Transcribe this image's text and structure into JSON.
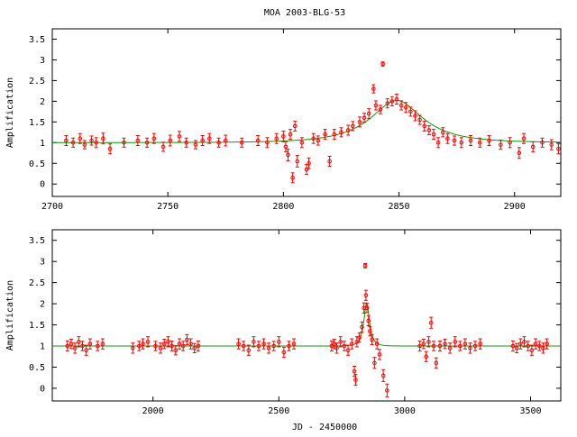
{
  "title": "MOA 2003-BLG-53",
  "chart_data": [
    {
      "type": "scatter",
      "name": "zoom-panel",
      "title": "MOA 2003-BLG-53",
      "xlabel": "",
      "ylabel": "Amplification",
      "xlim": [
        2700,
        2920
      ],
      "ylim": [
        -0.3,
        3.75
      ],
      "xticks": [
        2700,
        2750,
        2800,
        2850,
        2900
      ],
      "yticks": [
        0,
        0.5,
        1,
        1.5,
        2,
        2.5,
        3,
        3.5
      ],
      "ytick_labels": [
        "0",
        "0.5",
        "1",
        "1.5",
        "2",
        "2.5",
        "3",
        "3.5"
      ],
      "colors": {
        "points": "#ff0000",
        "model": "#00a000"
      },
      "model": {
        "t0": 2849,
        "umin": 0.55,
        "tE": 22
      },
      "points": [
        [
          2706,
          1.05,
          0.12
        ],
        [
          2709,
          1.0,
          0.11
        ],
        [
          2712,
          1.1,
          0.12
        ],
        [
          2714,
          0.95,
          0.1
        ],
        [
          2717,
          1.05,
          0.11
        ],
        [
          2719,
          1.0,
          0.12
        ],
        [
          2722,
          1.1,
          0.13
        ],
        [
          2725,
          0.85,
          0.12
        ],
        [
          2731,
          1.0,
          0.11
        ],
        [
          2737,
          1.05,
          0.12
        ],
        [
          2741,
          1.0,
          0.11
        ],
        [
          2744,
          1.1,
          0.12
        ],
        [
          2748,
          0.9,
          0.11
        ],
        [
          2751,
          1.05,
          0.13
        ],
        [
          2755,
          1.15,
          0.12
        ],
        [
          2758,
          1.0,
          0.11
        ],
        [
          2762,
          0.95,
          0.1
        ],
        [
          2765,
          1.05,
          0.12
        ],
        [
          2768,
          1.1,
          0.12
        ],
        [
          2772,
          1.0,
          0.11
        ],
        [
          2775,
          1.05,
          0.13
        ],
        [
          2782,
          1.0,
          0.11
        ],
        [
          2789,
          1.05,
          0.12
        ],
        [
          2793,
          1.0,
          0.12
        ],
        [
          2797,
          1.1,
          0.12
        ],
        [
          2800,
          1.15,
          0.13
        ],
        [
          2801,
          0.9,
          0.12
        ],
        [
          2802,
          0.7,
          0.14
        ],
        [
          2803,
          1.2,
          0.12
        ],
        [
          2804,
          0.15,
          0.12
        ],
        [
          2805,
          1.4,
          0.12
        ],
        [
          2806,
          0.55,
          0.14
        ],
        [
          2808,
          1.0,
          0.12
        ],
        [
          2810,
          0.35,
          0.12
        ],
        [
          2811,
          0.5,
          0.13
        ],
        [
          2813,
          1.1,
          0.12
        ],
        [
          2815,
          1.05,
          0.11
        ],
        [
          2818,
          1.2,
          0.12
        ],
        [
          2820,
          0.55,
          0.12
        ],
        [
          2822,
          1.2,
          0.12
        ],
        [
          2825,
          1.25,
          0.11
        ],
        [
          2828,
          1.3,
          0.12
        ],
        [
          2830,
          1.4,
          0.11
        ],
        [
          2833,
          1.5,
          0.12
        ],
        [
          2835,
          1.6,
          0.11
        ],
        [
          2837,
          1.7,
          0.12
        ],
        [
          2839,
          2.3,
          0.1
        ],
        [
          2840,
          1.9,
          0.11
        ],
        [
          2842,
          1.8,
          0.1
        ],
        [
          2843,
          2.9,
          0.05
        ],
        [
          2845,
          1.95,
          0.11
        ],
        [
          2847,
          2.0,
          0.11
        ],
        [
          2849,
          2.05,
          0.12
        ],
        [
          2851,
          1.9,
          0.11
        ],
        [
          2853,
          1.85,
          0.12
        ],
        [
          2855,
          1.75,
          0.11
        ],
        [
          2857,
          1.65,
          0.12
        ],
        [
          2859,
          1.55,
          0.11
        ],
        [
          2861,
          1.4,
          0.12
        ],
        [
          2863,
          1.3,
          0.11
        ],
        [
          2865,
          1.2,
          0.12
        ],
        [
          2867,
          1.0,
          0.12
        ],
        [
          2869,
          1.25,
          0.11
        ],
        [
          2871,
          1.1,
          0.12
        ],
        [
          2874,
          1.05,
          0.11
        ],
        [
          2877,
          1.0,
          0.12
        ],
        [
          2881,
          1.05,
          0.12
        ],
        [
          2885,
          1.0,
          0.11
        ],
        [
          2889,
          1.05,
          0.12
        ],
        [
          2894,
          0.95,
          0.11
        ],
        [
          2898,
          1.0,
          0.12
        ],
        [
          2902,
          0.75,
          0.13
        ],
        [
          2904,
          1.1,
          0.12
        ],
        [
          2908,
          0.9,
          0.12
        ],
        [
          2912,
          1.0,
          0.11
        ],
        [
          2916,
          0.95,
          0.12
        ],
        [
          2919,
          0.85,
          0.12
        ]
      ]
    },
    {
      "type": "scatter",
      "name": "full-panel",
      "title": "",
      "xlabel": "JD - 2450000",
      "ylabel": "Amplification",
      "xlim": [
        1600,
        3620
      ],
      "ylim": [
        -0.3,
        3.75
      ],
      "xticks": [
        2000,
        2500,
        3000,
        3500
      ],
      "yticks": [
        0,
        0.5,
        1,
        1.5,
        2,
        2.5,
        3,
        3.5
      ],
      "ytick_labels": [
        "0",
        "0.5",
        "1",
        "1.5",
        "2",
        "2.5",
        "3",
        "3.5"
      ],
      "colors": {
        "points": "#ff0000",
        "model": "#00a000"
      },
      "model": {
        "t0": 2849,
        "umin": 0.55,
        "tE": 22
      },
      "points": [
        [
          1660,
          1.0,
          0.12
        ],
        [
          1675,
          1.05,
          0.11
        ],
        [
          1690,
          0.95,
          0.12
        ],
        [
          1705,
          1.1,
          0.12
        ],
        [
          1720,
          1.0,
          0.11
        ],
        [
          1735,
          0.9,
          0.12
        ],
        [
          1750,
          1.05,
          0.12
        ],
        [
          1780,
          1.0,
          0.11
        ],
        [
          1800,
          1.05,
          0.12
        ],
        [
          1920,
          0.95,
          0.12
        ],
        [
          1945,
          1.0,
          0.11
        ],
        [
          1960,
          1.05,
          0.12
        ],
        [
          1980,
          1.1,
          0.12
        ],
        [
          2010,
          1.0,
          0.11
        ],
        [
          2030,
          0.95,
          0.12
        ],
        [
          2045,
          1.05,
          0.11
        ],
        [
          2060,
          1.1,
          0.12
        ],
        [
          2075,
          1.0,
          0.12
        ],
        [
          2090,
          0.9,
          0.11
        ],
        [
          2105,
          1.05,
          0.12
        ],
        [
          2120,
          1.0,
          0.11
        ],
        [
          2135,
          1.15,
          0.12
        ],
        [
          2150,
          1.05,
          0.12
        ],
        [
          2165,
          0.95,
          0.11
        ],
        [
          2180,
          1.0,
          0.12
        ],
        [
          2340,
          1.05,
          0.12
        ],
        [
          2360,
          1.0,
          0.11
        ],
        [
          2380,
          0.9,
          0.12
        ],
        [
          2400,
          1.1,
          0.12
        ],
        [
          2420,
          1.0,
          0.11
        ],
        [
          2440,
          1.05,
          0.12
        ],
        [
          2460,
          0.95,
          0.12
        ],
        [
          2480,
          1.0,
          0.11
        ],
        [
          2500,
          1.1,
          0.12
        ],
        [
          2520,
          0.85,
          0.12
        ],
        [
          2540,
          1.0,
          0.11
        ],
        [
          2560,
          1.05,
          0.12
        ],
        [
          2710,
          1.0,
          0.12
        ],
        [
          2720,
          1.05,
          0.11
        ],
        [
          2730,
          0.95,
          0.12
        ],
        [
          2745,
          1.1,
          0.12
        ],
        [
          2760,
          1.0,
          0.11
        ],
        [
          2775,
          0.9,
          0.12
        ],
        [
          2790,
          1.05,
          0.12
        ],
        [
          2800,
          0.4,
          0.12
        ],
        [
          2805,
          0.2,
          0.13
        ],
        [
          2810,
          1.1,
          0.12
        ],
        [
          2820,
          1.2,
          0.11
        ],
        [
          2830,
          1.45,
          0.12
        ],
        [
          2838,
          1.9,
          0.12
        ],
        [
          2843,
          2.9,
          0.05
        ],
        [
          2846,
          2.2,
          0.12
        ],
        [
          2850,
          1.9,
          0.11
        ],
        [
          2856,
          1.6,
          0.12
        ],
        [
          2862,
          1.35,
          0.11
        ],
        [
          2870,
          1.15,
          0.12
        ],
        [
          2880,
          0.6,
          0.13
        ],
        [
          2890,
          1.05,
          0.12
        ],
        [
          2900,
          0.8,
          0.12
        ],
        [
          2915,
          0.3,
          0.14
        ],
        [
          2930,
          -0.05,
          0.15
        ],
        [
          3060,
          1.0,
          0.12
        ],
        [
          3075,
          1.05,
          0.11
        ],
        [
          3085,
          0.75,
          0.12
        ],
        [
          3095,
          1.1,
          0.12
        ],
        [
          3105,
          1.55,
          0.13
        ],
        [
          3115,
          1.0,
          0.11
        ],
        [
          3125,
          0.6,
          0.12
        ],
        [
          3140,
          1.0,
          0.12
        ],
        [
          3160,
          1.05,
          0.11
        ],
        [
          3180,
          0.95,
          0.12
        ],
        [
          3200,
          1.1,
          0.12
        ],
        [
          3220,
          1.0,
          0.11
        ],
        [
          3240,
          1.05,
          0.12
        ],
        [
          3260,
          0.95,
          0.12
        ],
        [
          3280,
          1.0,
          0.11
        ],
        [
          3300,
          1.05,
          0.12
        ],
        [
          3430,
          1.0,
          0.12
        ],
        [
          3445,
          0.95,
          0.11
        ],
        [
          3460,
          1.05,
          0.12
        ],
        [
          3475,
          1.1,
          0.12
        ],
        [
          3490,
          1.0,
          0.11
        ],
        [
          3505,
          0.9,
          0.12
        ],
        [
          3520,
          1.05,
          0.12
        ],
        [
          3535,
          1.0,
          0.11
        ],
        [
          3550,
          0.95,
          0.12
        ],
        [
          3565,
          1.05,
          0.12
        ]
      ]
    }
  ]
}
